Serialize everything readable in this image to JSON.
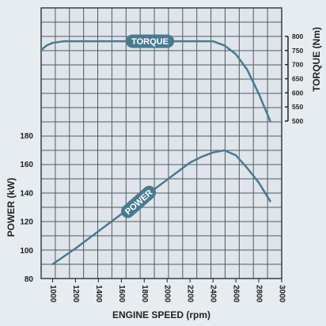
{
  "chart_data": {
    "type": "line",
    "xlabel": "ENGINE SPEED (rpm)",
    "x_ticks": [
      1000,
      1200,
      1400,
      1600,
      1800,
      2000,
      2200,
      2400,
      2600,
      2800,
      3000
    ],
    "xlim": [
      900,
      3000
    ],
    "grid": true,
    "axes": {
      "power": {
        "label": "POWER (kW)",
        "ylim": [
          80,
          180
        ],
        "ticks": [
          80,
          100,
          120,
          140,
          160,
          180
        ]
      },
      "torque": {
        "label": "TORQUE (Nm)",
        "ylim": [
          500,
          800
        ],
        "ticks": [
          500,
          550,
          600,
          650,
          700,
          750,
          800
        ]
      }
    },
    "series": [
      {
        "name": "TORQUE",
        "axis": "torque",
        "color": "#4a7a90",
        "x": [
          900,
          950,
          1000,
          1100,
          1200,
          1400,
          1600,
          1800,
          2000,
          2200,
          2400,
          2500,
          2600,
          2700,
          2800,
          2900
        ],
        "y": [
          752,
          768,
          777,
          783,
          783,
          783,
          783,
          783,
          783,
          783,
          783,
          768,
          737,
          681,
          597,
          500
        ]
      },
      {
        "name": "POWER",
        "axis": "power",
        "color": "#4a7a90",
        "x": [
          1000,
          1200,
          1400,
          1600,
          1800,
          2000,
          2200,
          2300,
          2400,
          2500,
          2600,
          2700,
          2800,
          2900
        ],
        "y": [
          90,
          101,
          113,
          125,
          137,
          149,
          161,
          165,
          168,
          169.5,
          166,
          157,
          147,
          134
        ]
      }
    ]
  }
}
